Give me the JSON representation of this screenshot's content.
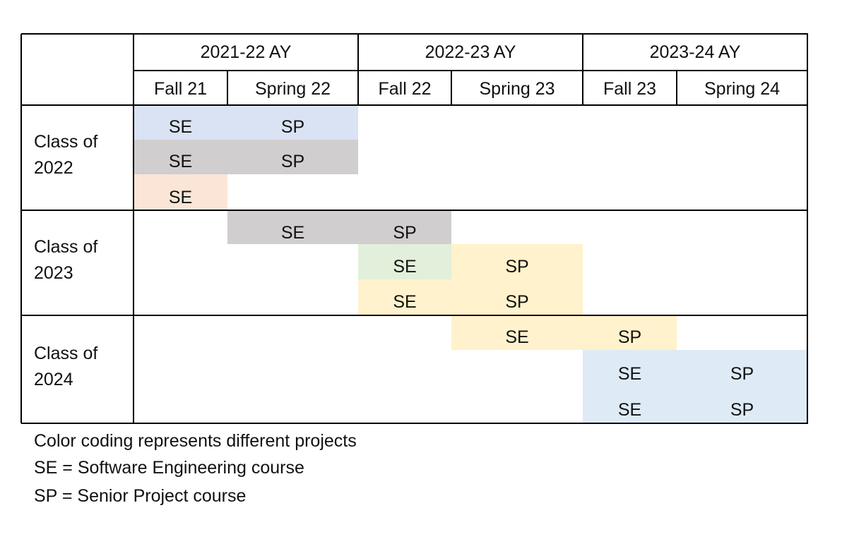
{
  "table": {
    "academic_years": [
      {
        "label": "2021-22 AY"
      },
      {
        "label": "2022-23 AY"
      },
      {
        "label": "2023-24 AY"
      }
    ],
    "terms": [
      {
        "label": "Fall 21"
      },
      {
        "label": "Spring 22"
      },
      {
        "label": "Fall 22"
      },
      {
        "label": "Spring 23"
      },
      {
        "label": "Fall 23"
      },
      {
        "label": "Spring 24"
      }
    ],
    "classes": [
      {
        "label_line1": "Class of",
        "label_line2": "2022"
      },
      {
        "label_line1": "Class of",
        "label_line2": "2023"
      },
      {
        "label_line1": "Class of",
        "label_line2": "2024"
      }
    ],
    "bars": [
      {
        "class": 0,
        "row": 0,
        "start_term": 0,
        "end_term": 1,
        "color": "#dae3f3",
        "labels": [
          "SE",
          "SP"
        ]
      },
      {
        "class": 0,
        "row": 1,
        "start_term": 0,
        "end_term": 1,
        "color": "#d0cece",
        "labels": [
          "SE",
          "SP"
        ]
      },
      {
        "class": 0,
        "row": 2,
        "start_term": 0,
        "end_term": 0,
        "color": "#fbe5d6",
        "labels": [
          "SE"
        ]
      },
      {
        "class": 1,
        "row": 0,
        "start_term": 1,
        "end_term": 2,
        "color": "#d0cece",
        "labels": [
          "SE",
          "SP"
        ]
      },
      {
        "class": 1,
        "row": 1,
        "start_term": 2,
        "end_term": 2,
        "color": "#e2efda",
        "labels": [
          "SE"
        ]
      },
      {
        "class": 1,
        "row": 1,
        "start_term": 3,
        "end_term": 3,
        "color": "#fff2cc",
        "labels": [
          "SP"
        ]
      },
      {
        "class": 1,
        "row": 2,
        "start_term": 2,
        "end_term": 3,
        "color": "#fff2cc",
        "labels": [
          "SE",
          "SP"
        ]
      },
      {
        "class": 2,
        "row": 0,
        "start_term": 3,
        "end_term": 4,
        "color": "#fff2cc",
        "labels": [
          "SE",
          "SP"
        ]
      },
      {
        "class": 2,
        "row": 1,
        "start_term": 4,
        "end_term": 5,
        "color": "#deebf7",
        "labels": [
          "SE",
          "SP"
        ]
      },
      {
        "class": 2,
        "row": 2,
        "start_term": 4,
        "end_term": 5,
        "color": "#deebf7",
        "labels": [
          "SE",
          "SP"
        ]
      }
    ]
  },
  "legend": {
    "line1": "Color coding represents different projects",
    "line2": "SE = Software Engineering course",
    "line3": "SP = Senior Project course"
  }
}
